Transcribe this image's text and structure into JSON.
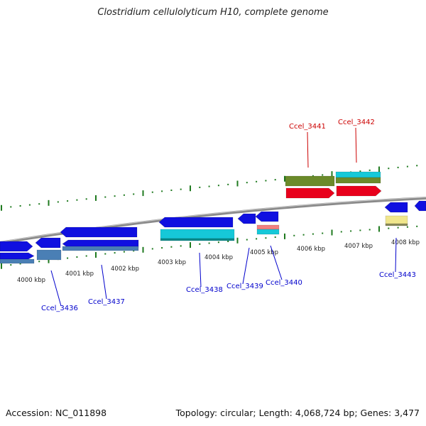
{
  "title": "Clostridium cellulolyticum H10, complete genome",
  "footer": {
    "accession": "Accession: NC_011898",
    "stats": "Topology: circular; Length: 4,068,724 bp; Genes: 3,477"
  },
  "scale_labels": [
    "4000 kbp",
    "4001 kbp",
    "4002 kbp",
    "4003 kbp",
    "4004 kbp",
    "4005 kbp",
    "4006 kbp",
    "4007 kbp",
    "4008 kbp"
  ],
  "genes_labeled": [
    {
      "name": "Ccel_3436",
      "color": "#0000cc"
    },
    {
      "name": "Ccel_3437",
      "color": "#0000cc"
    },
    {
      "name": "Ccel_3438",
      "color": "#0000cc"
    },
    {
      "name": "Ccel_3439",
      "color": "#0000cc"
    },
    {
      "name": "Ccel_3440",
      "color": "#0000cc"
    },
    {
      "name": "Ccel_3441",
      "color": "#cc0000"
    },
    {
      "name": "Ccel_3442",
      "color": "#cc0000"
    },
    {
      "name": "Ccel_3443",
      "color": "#0000cc"
    }
  ],
  "colors": {
    "backbone": "#8a8a8a",
    "tick": "#1f7a1f",
    "cds_forward": "#e8001c",
    "cds_reverse": "#1010e0",
    "gene_teal": "#16c8d8",
    "gene_olive": "#6b8a2a",
    "gene_steel": "#4a7fb5",
    "gene_pink": "#f08080",
    "gene_cream": "#f0e68c"
  }
}
